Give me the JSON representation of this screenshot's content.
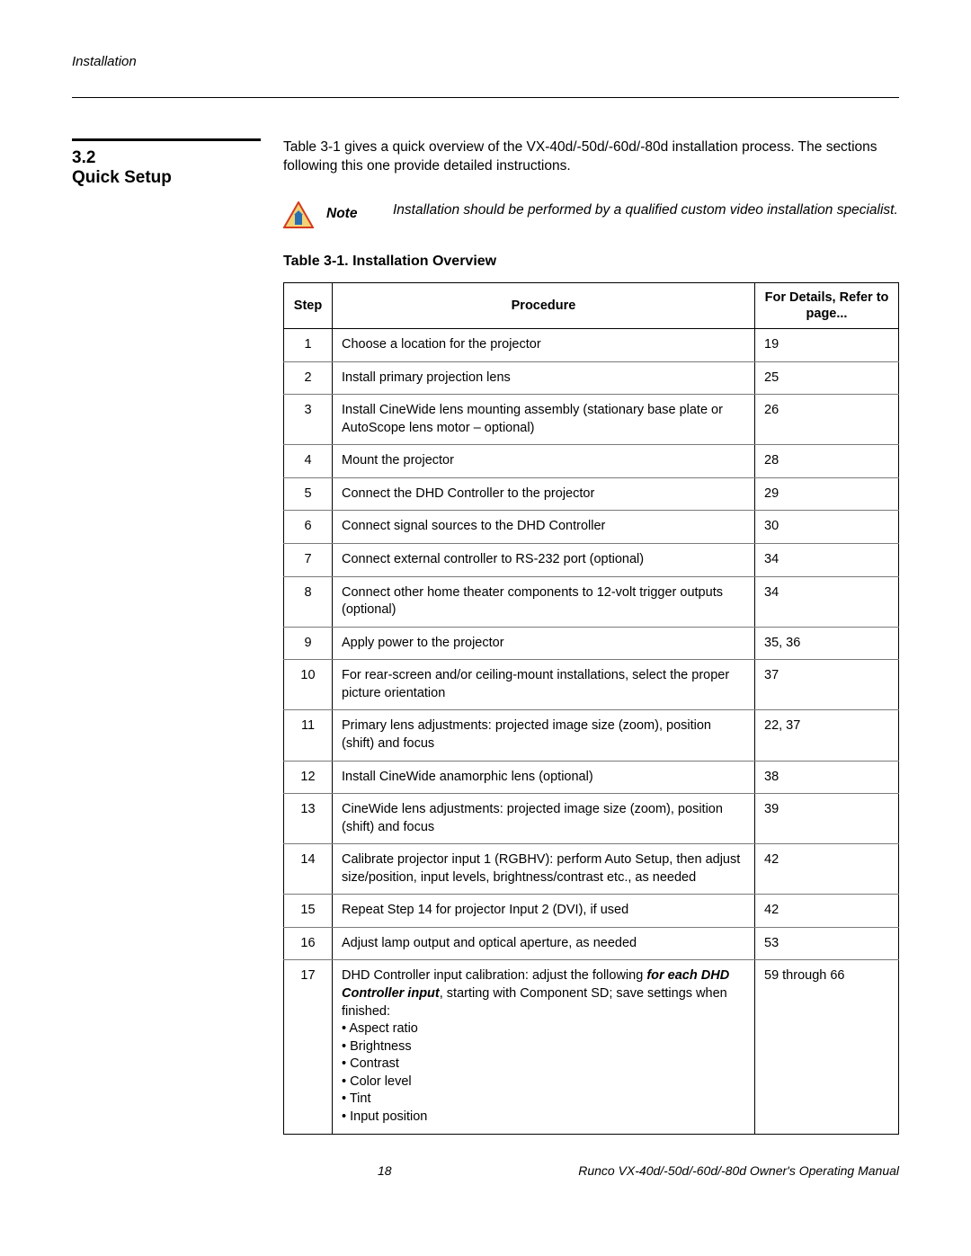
{
  "header": {
    "section_label": "Installation"
  },
  "section": {
    "number": "3.2",
    "title": "Quick Setup"
  },
  "intro": "Table 3-1 gives a quick overview of the VX-40d/-50d/-60d/-80d installation process. The sections following this one provide detailed instructions.",
  "note": {
    "label": "Note",
    "text": "Installation should be performed by a qualified custom video installation specialist.",
    "icon_colors": {
      "border": "#d63a1f",
      "fill_top": "#f7e38b",
      "fill_bottom": "#e9b84f",
      "inner": "#2b6fb0"
    }
  },
  "table": {
    "caption": "Table 3-1. Installation Overview",
    "headers": {
      "step": "Step",
      "procedure": "Procedure",
      "page": "For Details, Refer to page..."
    },
    "col_widths": {
      "step": 54,
      "procedure": "auto",
      "page": 160
    },
    "border_color": "#000000",
    "row_divider_color": "#7a7a7a",
    "rows": [
      {
        "step": "1",
        "procedure": "Choose a location for the projector",
        "page": "19"
      },
      {
        "step": "2",
        "procedure": "Install primary projection lens",
        "page": "25"
      },
      {
        "step": "3",
        "procedure": "Install CineWide lens mounting assembly (stationary base plate or AutoScope lens motor – optional)",
        "page": "26"
      },
      {
        "step": "4",
        "procedure": "Mount the projector",
        "page": "28"
      },
      {
        "step": "5",
        "procedure": "Connect the DHD Controller to the projector",
        "page": "29"
      },
      {
        "step": "6",
        "procedure": "Connect signal sources to the DHD Controller",
        "page": "30"
      },
      {
        "step": "7",
        "procedure": "Connect external controller to RS-232 port (optional)",
        "page": "34"
      },
      {
        "step": "8",
        "procedure": "Connect other home theater components to 12-volt trigger outputs (optional)",
        "page": "34"
      },
      {
        "step": "9",
        "procedure": "Apply power to the projector",
        "page": "35, 36"
      },
      {
        "step": "10",
        "procedure": "For rear-screen and/or ceiling-mount installations, select the proper picture orientation",
        "page": "37"
      },
      {
        "step": "11",
        "procedure": "Primary lens adjustments: projected image size (zoom), position (shift) and focus",
        "page": "22, 37"
      },
      {
        "step": "12",
        "procedure": "Install CineWide anamorphic lens (optional)",
        "page": "38"
      },
      {
        "step": "13",
        "procedure": "CineWide lens adjustments: projected image size (zoom), position (shift) and focus",
        "page": "39"
      },
      {
        "step": "14",
        "procedure": "Calibrate projector input 1 (RGBHV): perform Auto Setup, then adjust size/position, input levels, brightness/contrast etc., as needed",
        "page": "42"
      },
      {
        "step": "15",
        "procedure": "Repeat Step 14 for projector Input 2 (DVI), if used",
        "page": "42"
      },
      {
        "step": "16",
        "procedure": "Adjust lamp output and optical aperture, as needed",
        "page": "53"
      },
      {
        "step": "17",
        "procedure_rich": {
          "prefix": "DHD Controller input calibration: adjust the following ",
          "bold_italic": "for each DHD Controller input",
          "suffix": ", starting with Component SD; save settings when finished:",
          "bullets": [
            "Aspect ratio",
            "Brightness",
            "Contrast",
            "Color level",
            "Tint",
            "Input position"
          ]
        },
        "page": "59 through 66"
      }
    ]
  },
  "footer": {
    "page_number": "18",
    "manual": "Runco VX-40d/-50d/-60d/-80d Owner's Operating Manual"
  }
}
